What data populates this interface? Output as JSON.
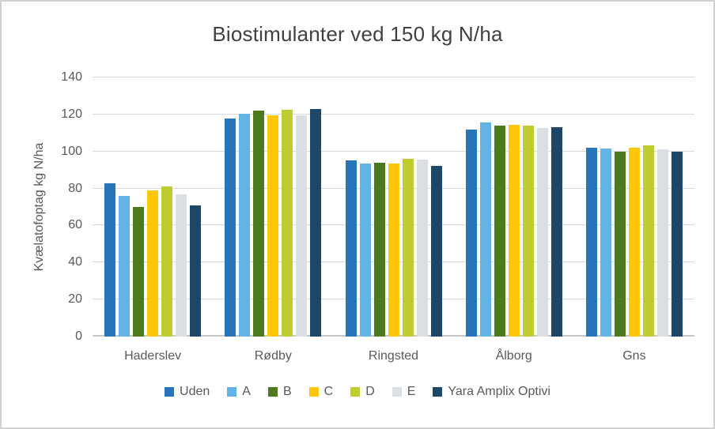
{
  "chart_data": {
    "type": "bar",
    "title": "Biostimulanter ved 150 kg N/ha",
    "xlabel": "",
    "ylabel": "Kvælatofoptag kg N/ha",
    "ylim": [
      0,
      140
    ],
    "yticks": [
      0,
      20,
      40,
      60,
      80,
      100,
      120,
      140
    ],
    "grid": true,
    "legend_position": "bottom",
    "categories": [
      "Haderslev",
      "Rødby",
      "Ringsted",
      "Ålborg",
      "Gns"
    ],
    "series": [
      {
        "name": "Uden",
        "color": "#2776bb",
        "values": [
          83,
          118,
          95,
          112,
          102
        ]
      },
      {
        "name": "A",
        "color": "#63b3e4",
        "values": [
          76,
          120.5,
          93.5,
          115.5,
          101.5
        ]
      },
      {
        "name": "B",
        "color": "#4e7a1e",
        "values": [
          70,
          122,
          94,
          114,
          100
        ]
      },
      {
        "name": "C",
        "color": "#ffc60a",
        "values": [
          79,
          119.5,
          93.5,
          114.5,
          102
        ]
      },
      {
        "name": "D",
        "color": "#bfcc30",
        "values": [
          81,
          122.5,
          96,
          114,
          103.5
        ]
      },
      {
        "name": "E",
        "color": "#d9dfe3",
        "values": [
          77,
          119.5,
          95.5,
          112.5,
          101
        ]
      },
      {
        "name": "Yara Amplix Optivi",
        "color": "#1d4769",
        "values": [
          71,
          123,
          92,
          113,
          100
        ]
      }
    ]
  },
  "colors": {
    "title_text": "#404040",
    "axis_text": "#595959",
    "gridline": "#d9d9d9",
    "axis_line": "#c6c6c6",
    "frame_border": "#d2d2d2"
  }
}
